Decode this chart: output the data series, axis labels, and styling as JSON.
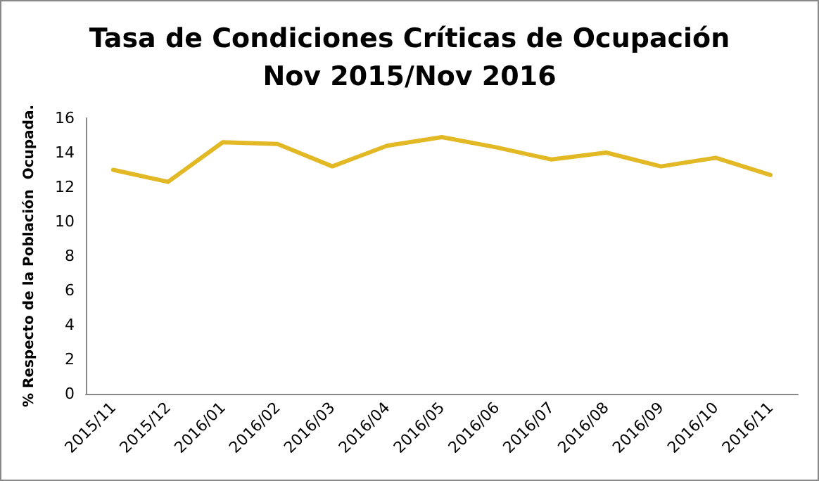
{
  "chart_data": {
    "type": "line",
    "title": "Tasa de Condiciones Críticas de Ocupación\nNov 2015/Nov 2016",
    "ylabel": "% Respecto de la Población  Ocupada.",
    "categories": [
      "2015/11",
      "2015/12",
      "2016/01",
      "2016/02",
      "2016/03",
      "2016/04",
      "2016/05",
      "2016/06",
      "2016/07",
      "2016/08",
      "2016/09",
      "2016/10",
      "2016/11"
    ],
    "series": [
      {
        "color": "#e2b824",
        "values": [
          13.0,
          12.3,
          14.6,
          14.5,
          13.2,
          14.4,
          14.9,
          14.3,
          13.6,
          14.0,
          13.2,
          13.7,
          12.7
        ]
      }
    ],
    "ylim": [
      0,
      16
    ],
    "yticks": [
      0,
      2,
      4,
      6,
      8,
      10,
      12,
      14,
      16
    ],
    "grid": false,
    "marker": "none",
    "line_style": "solid"
  }
}
